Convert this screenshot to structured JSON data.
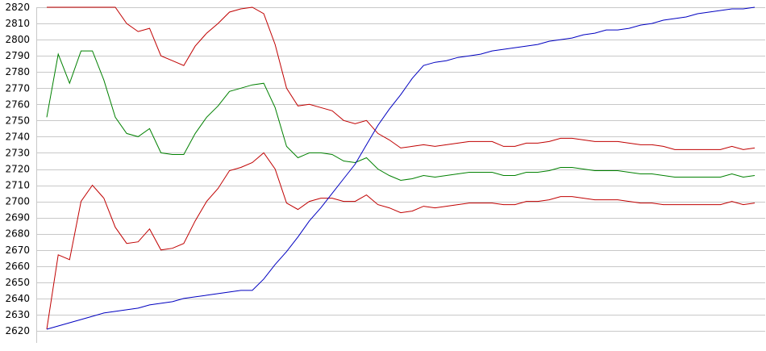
{
  "chart_data": {
    "type": "line",
    "title": "",
    "xlabel": "",
    "ylabel": "",
    "ylim": [
      2620,
      2820
    ],
    "yticks": [
      2620,
      2630,
      2640,
      2650,
      2660,
      2670,
      2680,
      2690,
      2700,
      2710,
      2720,
      2730,
      2740,
      2750,
      2760,
      2770,
      2780,
      2790,
      2800,
      2810,
      2820
    ],
    "grid": true,
    "legend": "none",
    "x": [
      0,
      1,
      2,
      3,
      4,
      5,
      6,
      7,
      8,
      9,
      10,
      11,
      12,
      13,
      14,
      15,
      16,
      17,
      18,
      19,
      20,
      21,
      22,
      23,
      24,
      25,
      26,
      27,
      28,
      29,
      30,
      31,
      32,
      33,
      34,
      35,
      36,
      37,
      38,
      39,
      40,
      41,
      42,
      43,
      44,
      45,
      46,
      47,
      48,
      49,
      50,
      51,
      52,
      53,
      54,
      55,
      56,
      57,
      58,
      59,
      60,
      61,
      62
    ],
    "series": [
      {
        "color": "#c00000",
        "values": [
          2820,
          2820,
          2820,
          2820,
          2820,
          2820,
          2820,
          2810,
          2805,
          2807,
          2790,
          2787,
          2784,
          2796,
          2804,
          2810,
          2817,
          2819,
          2820,
          2816,
          2797,
          2770,
          2759,
          2760,
          2758,
          2756,
          2750,
          2748,
          2750,
          2742,
          2738,
          2733,
          2734,
          2735,
          2734,
          2735,
          2736,
          2737,
          2737,
          2737,
          2734,
          2734,
          2736,
          2736,
          2737,
          2739,
          2739,
          2738,
          2737,
          2737,
          2737,
          2736,
          2735,
          2735,
          2734,
          2732,
          2732,
          2732,
          2732,
          2732,
          2734,
          2732,
          2733
        ]
      },
      {
        "color": "#008000",
        "values": [
          2752,
          2791,
          2773,
          2793,
          2793,
          2775,
          2752,
          2742,
          2740,
          2745,
          2730,
          2729,
          2729,
          2742,
          2752,
          2759,
          2768,
          2770,
          2772,
          2773,
          2758,
          2734,
          2727,
          2730,
          2730,
          2729,
          2725,
          2724,
          2727,
          2720,
          2716,
          2713,
          2714,
          2716,
          2715,
          2716,
          2717,
          2718,
          2718,
          2718,
          2716,
          2716,
          2718,
          2718,
          2719,
          2721,
          2721,
          2720,
          2719,
          2719,
          2719,
          2718,
          2717,
          2717,
          2716,
          2715,
          2715,
          2715,
          2715,
          2715,
          2717,
          2715,
          2716
        ]
      },
      {
        "color": "#c00000",
        "values": [
          2621,
          2667,
          2664,
          2700,
          2710,
          2702,
          2684,
          2674,
          2675,
          2683,
          2670,
          2671,
          2674,
          2688,
          2700,
          2708,
          2719,
          2721,
          2724,
          2730,
          2720,
          2699,
          2695,
          2700,
          2702,
          2702,
          2700,
          2700,
          2704,
          2698,
          2696,
          2693,
          2694,
          2697,
          2696,
          2697,
          2698,
          2699,
          2699,
          2699,
          2698,
          2698,
          2700,
          2700,
          2701,
          2703,
          2703,
          2702,
          2701,
          2701,
          2701,
          2700,
          2699,
          2699,
          2698,
          2698,
          2698,
          2698,
          2698,
          2698,
          2700,
          2698,
          2699
        ]
      },
      {
        "color": "#0000c0",
        "values": [
          2621,
          2623,
          2625,
          2627,
          2629,
          2631,
          2632,
          2633,
          2634,
          2636,
          2637,
          2638,
          2640,
          2641,
          2642,
          2643,
          2644,
          2645,
          2645,
          2652,
          2661,
          2669,
          2678,
          2688,
          2696,
          2705,
          2714,
          2723,
          2735,
          2747,
          2757,
          2766,
          2776,
          2784,
          2786,
          2787,
          2789,
          2790,
          2791,
          2793,
          2794,
          2795,
          2796,
          2797,
          2799,
          2800,
          2801,
          2803,
          2804,
          2806,
          2806,
          2807,
          2809,
          2810,
          2812,
          2813,
          2814,
          2816,
          2817,
          2818,
          2819,
          2819,
          2820
        ]
      }
    ]
  }
}
